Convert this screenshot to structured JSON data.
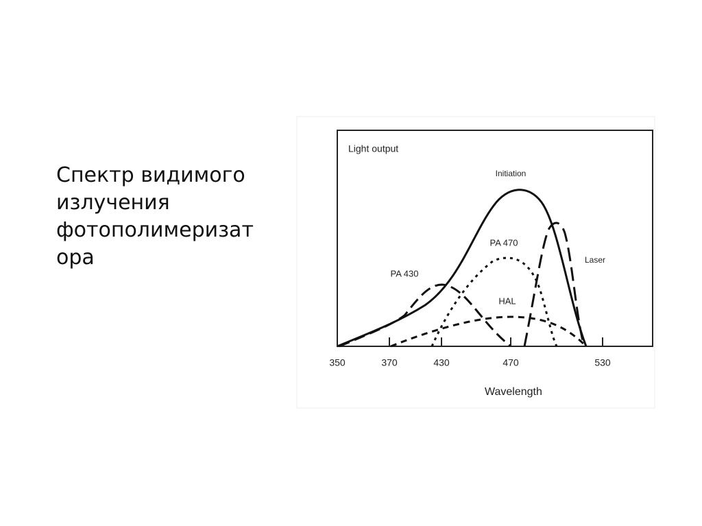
{
  "slide": {
    "text_lines": [
      "Спектр видимого",
      "излучения",
      "фотополимеризат",
      "ора"
    ]
  },
  "figure": {
    "y_label": "Light output",
    "x_label": "Wavelength",
    "xticks": [
      350,
      370,
      430,
      470,
      530
    ],
    "curve_labels": [
      "Initiation",
      "PA 470",
      "Laser",
      "PA 430",
      "HAL"
    ]
  }
}
